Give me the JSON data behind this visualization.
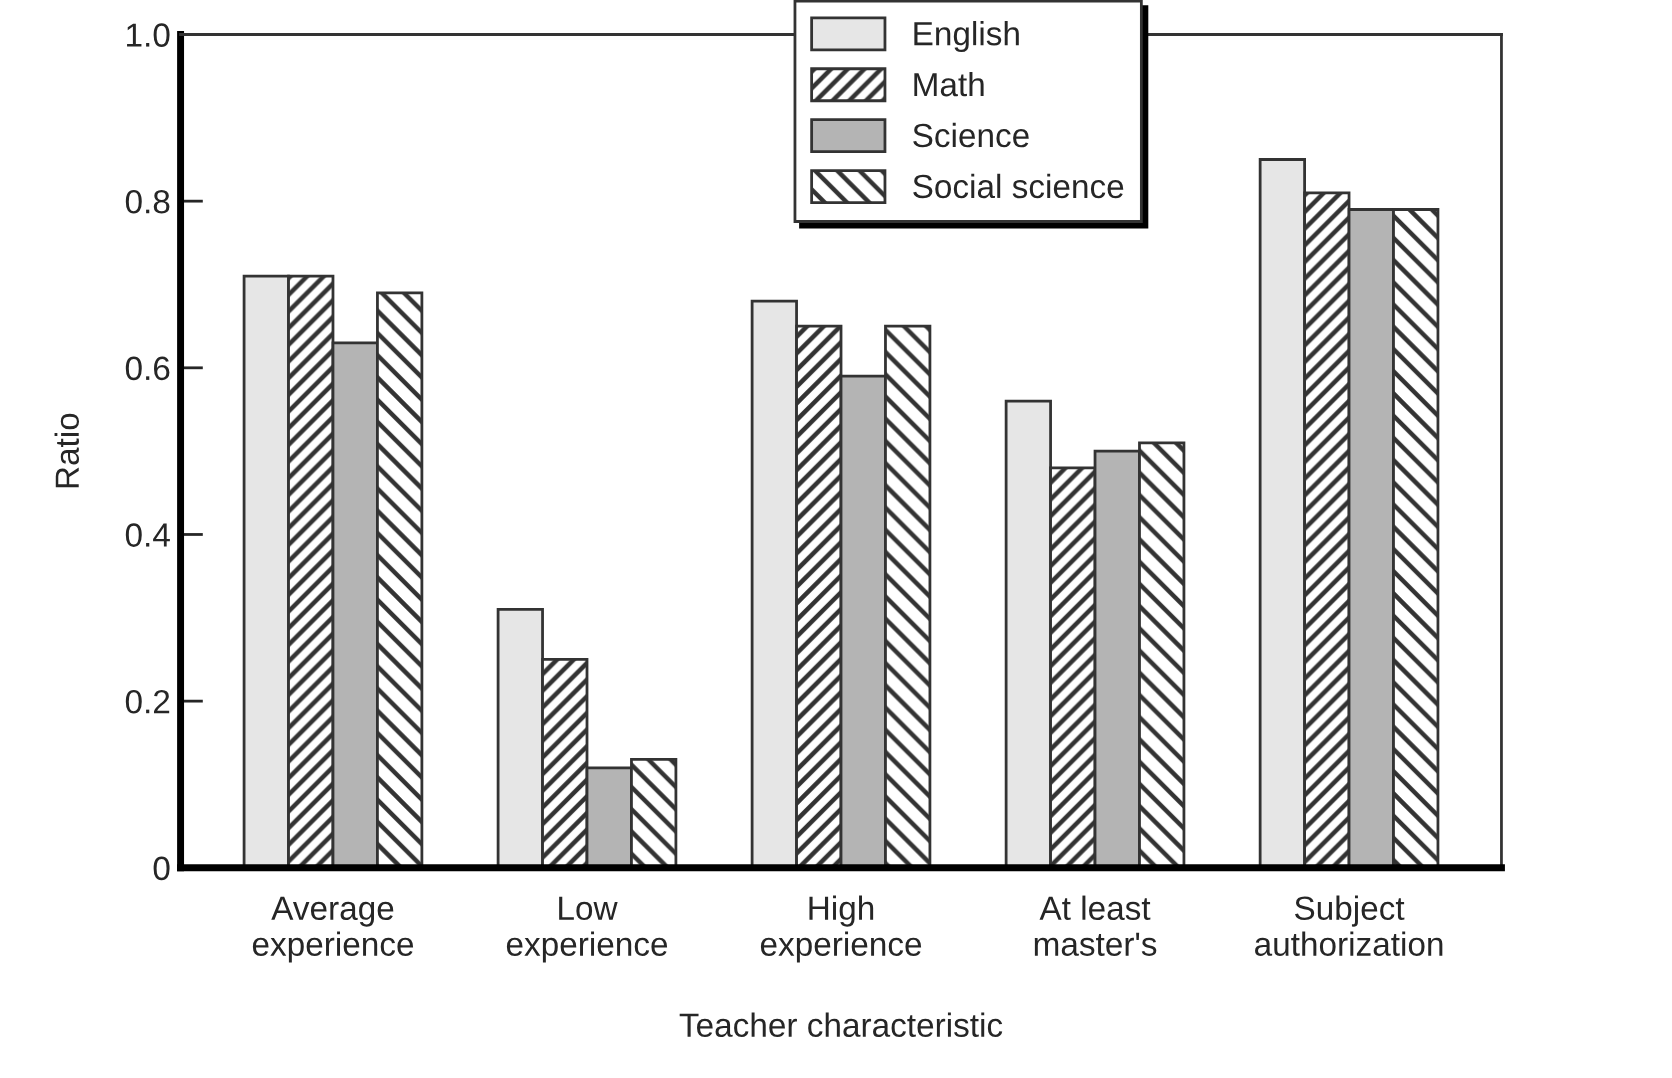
{
  "chart_data": {
    "type": "bar",
    "xlabel": "Teacher characteristic",
    "ylabel": "Ratio",
    "categories": [
      "Average\nexperience",
      "Low\nexperience",
      "High\nexperience",
      "At least\nmaster's",
      "Subject\nauthorization"
    ],
    "series": [
      {
        "name": "English",
        "color": "#e6e6e6",
        "values": [
          0.71,
          0.31,
          0.68,
          0.56,
          0.85
        ]
      },
      {
        "name": "Math",
        "color": "#333333",
        "values": [
          0.71,
          0.25,
          0.65,
          0.48,
          0.81
        ]
      },
      {
        "name": "Science",
        "color": "#b4b4b4",
        "values": [
          0.63,
          0.12,
          0.59,
          0.5,
          0.79
        ]
      },
      {
        "name": "Social science",
        "color": "#333333",
        "values": [
          0.69,
          0.13,
          0.65,
          0.51,
          0.79
        ]
      }
    ],
    "ylim": [
      0,
      1
    ],
    "yticks": [
      0,
      0.2,
      0.4,
      0.6,
      0.8,
      {
        "value": 1,
        "label": "1.0"
      }
    ],
    "grid": false,
    "legend": "top right"
  }
}
